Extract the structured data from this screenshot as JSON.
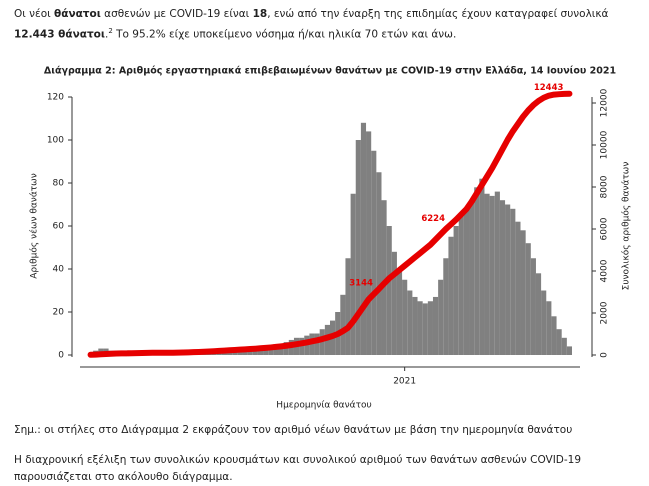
{
  "intro": {
    "parts": [
      "Οι νέοι ",
      "θάνατοι",
      " ασθενών με COVID-19 είναι ",
      "18",
      ", ενώ από την έναρξη της επιδημίας έχουν καταγραφεί συνολικά ",
      "12.443 θάνατοι",
      ".",
      "2",
      " Το 95.2% είχε υποκείμενο νόσημα ή/και ηλικία 70 ετών και άνω."
    ]
  },
  "chart_data": {
    "type": "bar",
    "title": "Διάγραμμα 2: Αριθμός εργαστηριακά επιβεβαιωμένων θανάτων με COVID-19 στην Ελλάδα, 14 Ιουνίου 2021",
    "x_label": "Ημερομηνία θανάτου",
    "y_label": "Αριθμός νέων θανάτων",
    "y2_label": "Συνολικός αριθμός θανάτων",
    "categories": [
      null,
      null,
      null,
      null,
      null,
      null,
      null,
      null,
      null,
      null,
      null,
      null,
      null,
      null,
      null,
      null,
      null,
      null,
      null,
      null,
      null,
      null,
      null,
      null,
      null,
      null,
      null,
      null,
      null,
      null,
      null,
      null,
      null,
      null,
      null,
      null,
      null,
      null,
      null,
      null,
      null,
      null,
      null,
      null,
      null,
      null,
      null,
      null,
      null,
      null,
      null,
      null,
      null,
      null,
      null,
      null,
      null,
      null,
      null,
      null,
      null,
      "2021",
      null,
      null,
      null,
      null,
      null,
      null,
      null,
      null,
      null,
      null,
      null,
      null,
      null,
      null,
      null,
      null,
      null,
      null,
      null,
      null,
      null,
      null,
      null,
      null,
      null,
      null,
      null,
      null,
      null,
      null,
      null,
      null
    ],
    "series": [
      {
        "name": "Νέοι θάνατοι",
        "color": "#808080",
        "values": [
          1,
          2,
          3,
          3,
          2,
          2,
          1,
          1,
          1,
          1,
          1,
          1,
          1,
          0,
          0,
          0,
          1,
          1,
          1,
          1,
          2,
          2,
          2,
          2,
          3,
          3,
          3,
          3,
          3,
          3,
          3,
          3,
          3,
          4,
          4,
          4,
          5,
          5,
          6,
          7,
          8,
          8,
          9,
          10,
          10,
          12,
          14,
          16,
          20,
          28,
          45,
          75,
          100,
          108,
          104,
          95,
          85,
          72,
          60,
          48,
          40,
          35,
          30,
          27,
          25,
          24,
          25,
          27,
          35,
          45,
          55,
          60,
          65,
          68,
          72,
          78,
          82,
          75,
          74,
          76,
          72,
          70,
          68,
          62,
          58,
          52,
          45,
          38,
          30,
          25,
          18,
          12,
          8,
          4
        ]
      },
      {
        "name": "Συνολικοί θάνατοι",
        "color": "#e60000",
        "axis": "y2",
        "values": [
          10,
          20,
          35,
          50,
          60,
          70,
          75,
          80,
          85,
          90,
          95,
          100,
          105,
          105,
          105,
          105,
          110,
          115,
          120,
          125,
          135,
          145,
          155,
          165,
          180,
          195,
          210,
          225,
          240,
          255,
          270,
          285,
          300,
          320,
          340,
          360,
          385,
          410,
          440,
          475,
          515,
          555,
          600,
          650,
          700,
          760,
          830,
          905,
          1000,
          1135,
          1300,
          1600,
          1950,
          2300,
          2650,
          2900,
          3144,
          3400,
          3650,
          3850,
          4050,
          4250,
          4450,
          4650,
          4850,
          5050,
          5250,
          5500,
          5750,
          6000,
          6224,
          6450,
          6700,
          6950,
          7300,
          7700,
          8100,
          8500,
          8900,
          9350,
          9800,
          10250,
          10650,
          11000,
          11350,
          11650,
          11900,
          12100,
          12250,
          12350,
          12400,
          12420,
          12435,
          12443
        ],
        "value_labels": [
          null,
          null,
          null,
          null,
          null,
          null,
          null,
          null,
          null,
          null,
          null,
          null,
          null,
          null,
          null,
          null,
          null,
          null,
          null,
          null,
          null,
          null,
          null,
          null,
          null,
          null,
          null,
          null,
          null,
          null,
          null,
          null,
          null,
          null,
          null,
          null,
          null,
          null,
          null,
          null,
          null,
          null,
          null,
          null,
          null,
          null,
          null,
          null,
          null,
          null,
          null,
          null,
          null,
          null,
          null,
          null,
          "3144",
          null,
          null,
          null,
          null,
          null,
          null,
          null,
          null,
          null,
          null,
          null,
          null,
          null,
          "6224",
          null,
          null,
          null,
          null,
          null,
          null,
          null,
          null,
          null,
          null,
          null,
          null,
          null,
          null,
          null,
          null,
          null,
          null,
          null,
          null,
          null,
          null,
          "12443"
        ]
      }
    ],
    "ylim": [
      0,
      120
    ],
    "yticks": [
      0,
      20,
      40,
      60,
      80,
      100,
      120
    ],
    "y2lim": [
      0,
      12000
    ],
    "y2ticks": [
      0,
      2000,
      4000,
      6000,
      8000,
      10000,
      12000
    ]
  },
  "note": "Σημ.: οι στήλες στο Διάγραμμα 2 εκφράζουν τον αριθμό νέων θανάτων με βάση την ημερομηνία θανάτου",
  "paragraph": "Η διαχρονική εξέλιξη των συνολικών κρουσμάτων και συνολικού αριθμού των θανάτων ασθενών COVID-19 παρουσιάζεται στο ακόλουθο διάγραμμα."
}
